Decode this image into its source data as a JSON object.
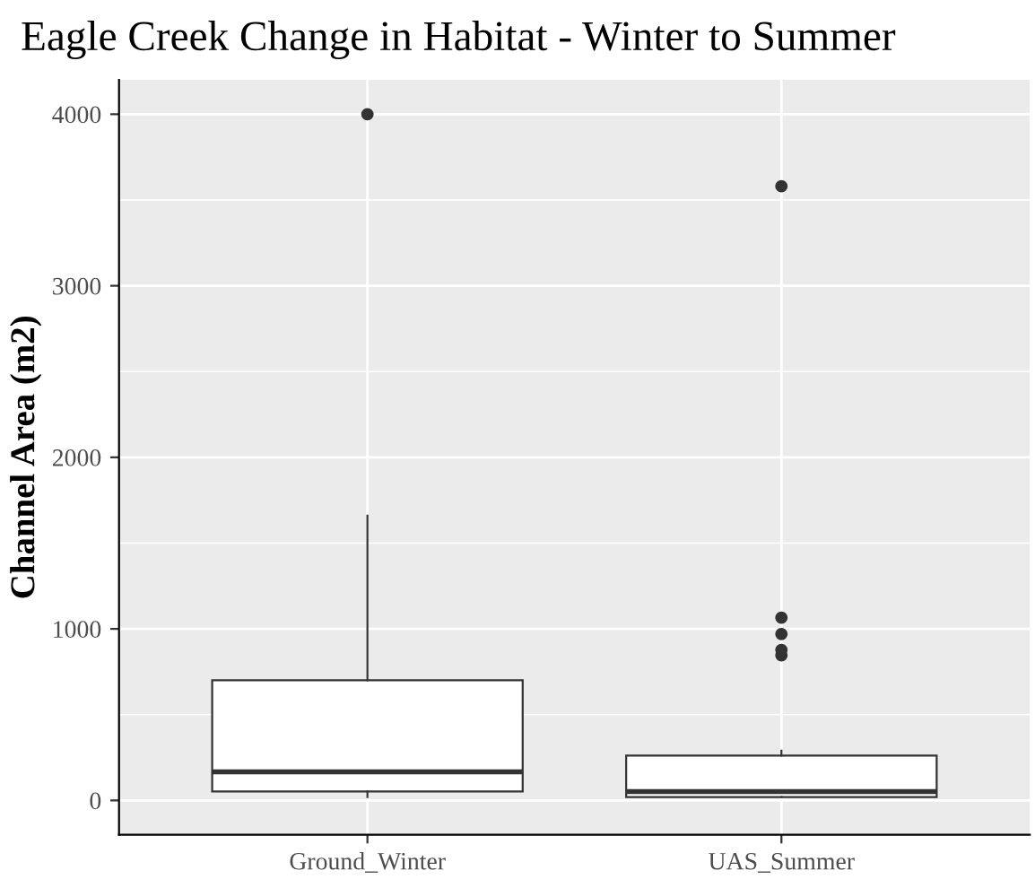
{
  "chart_data": {
    "type": "box",
    "title": "Eagle Creek Change in Habitat - Winter to Summer",
    "ylabel": "Channel Area (m2)",
    "categories": [
      "Ground_Winter",
      "UAS_Summer"
    ],
    "boxes": [
      {
        "low": 20,
        "q1": 52,
        "median": 167,
        "q3": 700,
        "high": 1660,
        "outliers": [
          4000
        ]
      },
      {
        "low": 20,
        "q1": 20,
        "median": 52,
        "q3": 261,
        "high": 290,
        "outliers": [
          3580,
          1065,
          970,
          877,
          846
        ]
      }
    ],
    "ylim": [
      -200,
      4200
    ],
    "yticks": [
      0,
      1000,
      2000,
      3000,
      4000
    ],
    "grid": true
  }
}
